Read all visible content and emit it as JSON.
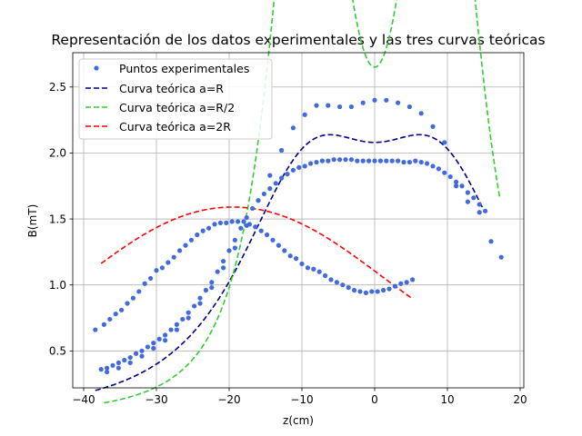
{
  "chart_data": {
    "type": "line",
    "title": "Representación de los datos experimentales y las tres curvas teóricas",
    "xlabel": "z(cm)",
    "ylabel": "B(mT)",
    "xlim": [
      -41.5,
      20.5
    ],
    "ylim": [
      0.22,
      2.76
    ],
    "xticks": [
      -40,
      -30,
      -20,
      -10,
      0,
      10,
      20
    ],
    "yticks": [
      0.5,
      1.0,
      1.5,
      2.0,
      2.5
    ],
    "xtick_labels": [
      "−40",
      "−30",
      "−20",
      "−10",
      "0",
      "10",
      "20"
    ],
    "ytick_labels": [
      "0.5",
      "1.0",
      "1.5",
      "2.0",
      "2.5"
    ],
    "grid": true,
    "legend_position": "top-left",
    "series": [
      {
        "name": "Puntos experimentales",
        "kind": "scatter",
        "color": "#4169e1",
        "x": [
          -38.4,
          -37.2,
          -36.4,
          -35.6,
          -34.8,
          -34.0,
          -33.2,
          -32.4,
          -31.6,
          -30.8,
          -30.0,
          -29.2,
          -28.4,
          -27.6,
          -26.8,
          -26.0,
          -25.2,
          -24.4,
          -23.6,
          -22.8,
          -22.0,
          -21.2,
          -20.4,
          -19.6,
          -18.8,
          -18.0,
          -17.2,
          -16.4,
          -15.6,
          -14.8,
          -14.0,
          -13.2,
          -12.4,
          -11.6,
          -10.8,
          -10.0,
          -9.2,
          -8.4,
          -7.6,
          -6.8,
          -6.0,
          -5.2,
          -4.4,
          -3.6,
          -2.8,
          -2.0,
          -1.2,
          -0.4,
          0.4,
          1.2,
          2.0,
          2.8,
          3.6,
          4.4,
          5.2,
          -37.6,
          -36.8,
          -36.0,
          -35.2,
          -34.4,
          -33.6,
          -32.8,
          -32.0,
          -31.2,
          -30.4,
          -29.6,
          -28.8,
          -28.0,
          -27.2,
          -26.4,
          -25.6,
          -24.8,
          -24.0,
          -23.2,
          -22.4,
          -21.6,
          -20.8,
          -20.0,
          -19.2,
          -18.4,
          -17.6,
          -16.8,
          -16.0,
          -15.2,
          -14.4,
          -13.6,
          -12.8,
          -12.0,
          -11.2,
          -10.4,
          -9.6,
          -8.8,
          -8.0,
          -7.2,
          -6.4,
          -5.6,
          -4.8,
          -4.0,
          -3.2,
          -2.4,
          -1.6,
          -0.8,
          0.0,
          0.8,
          1.6,
          2.4,
          3.2,
          4.0,
          4.8,
          5.6,
          6.4,
          7.2,
          8.0,
          8.8,
          9.6,
          10.4,
          11.2,
          12.0,
          12.8,
          13.6,
          14.4,
          15.2,
          -36.8,
          -35.2,
          -33.6,
          -32.0,
          -30.4,
          -28.8,
          -27.2,
          -25.6,
          -24.0,
          -22.4,
          -20.8,
          -19.2,
          -17.6,
          -16.0,
          -14.4,
          -12.8,
          -11.2,
          -9.6,
          -8.0,
          -6.4,
          -4.8,
          -3.2,
          -1.6,
          0.0,
          1.6,
          3.2,
          4.8,
          6.4,
          8.0,
          9.6,
          11.2,
          12.8,
          14.4,
          16.0,
          17.4
        ],
        "y": [
          0.66,
          0.7,
          0.74,
          0.78,
          0.81,
          0.86,
          0.9,
          0.95,
          1.01,
          1.05,
          1.11,
          1.13,
          1.17,
          1.21,
          1.26,
          1.3,
          1.34,
          1.38,
          1.41,
          1.43,
          1.46,
          1.47,
          1.47,
          1.48,
          1.48,
          1.48,
          1.46,
          1.44,
          1.41,
          1.38,
          1.34,
          1.3,
          1.26,
          1.22,
          1.2,
          1.16,
          1.13,
          1.12,
          1.1,
          1.07,
          1.04,
          1.02,
          1.0,
          0.98,
          0.96,
          0.95,
          0.94,
          0.95,
          0.95,
          0.96,
          0.97,
          0.99,
          1.01,
          1.02,
          1.04,
          0.36,
          0.37,
          0.39,
          0.41,
          0.43,
          0.45,
          0.48,
          0.5,
          0.53,
          0.56,
          0.59,
          0.62,
          0.66,
          0.7,
          0.74,
          0.79,
          0.84,
          0.9,
          0.96,
          1.02,
          1.1,
          1.18,
          1.26,
          1.34,
          1.43,
          1.51,
          1.58,
          1.64,
          1.69,
          1.73,
          1.77,
          1.81,
          1.84,
          1.87,
          1.89,
          1.9,
          1.92,
          1.93,
          1.94,
          1.94,
          1.95,
          1.95,
          1.95,
          1.95,
          1.94,
          1.94,
          1.94,
          1.94,
          1.94,
          1.94,
          1.94,
          1.94,
          1.93,
          1.93,
          1.94,
          1.93,
          1.92,
          1.9,
          1.88,
          1.85,
          1.82,
          1.78,
          1.75,
          1.7,
          1.66,
          1.61,
          1.56,
          0.34,
          0.37,
          0.41,
          0.46,
          0.52,
          0.58,
          0.66,
          0.75,
          0.86,
          0.98,
          1.13,
          1.28,
          1.45,
          1.64,
          1.83,
          2.02,
          2.19,
          2.29,
          2.36,
          2.36,
          2.35,
          2.35,
          2.38,
          2.4,
          2.4,
          2.38,
          2.35,
          2.3,
          2.2,
          2.08,
          1.75,
          1.63,
          1.55,
          1.33,
          1.21
        ]
      },
      {
        "name": "Curva teórica a=R",
        "kind": "line",
        "color": "#00008b",
        "radius": 1.0,
        "peak": 2.08,
        "center": 0,
        "ring_offset": 0.6,
        "x_start": -38.4,
        "x_end": 14.8
      },
      {
        "name": "Curva teórica a=R/2",
        "kind": "line",
        "color": "#32cd32",
        "radius": 0.5,
        "peak": 2.65,
        "center": 0,
        "ring_offset": 0.6,
        "x_start": -37.2,
        "x_end": 17.2
      },
      {
        "name": "Curva teórica a=2R",
        "kind": "line",
        "color": "#ff0000",
        "radius": 2.0,
        "peak": 1.59,
        "center": -19.5,
        "ring_offset": 0.6,
        "x_start": -37.6,
        "x_end": 5.2
      }
    ]
  }
}
